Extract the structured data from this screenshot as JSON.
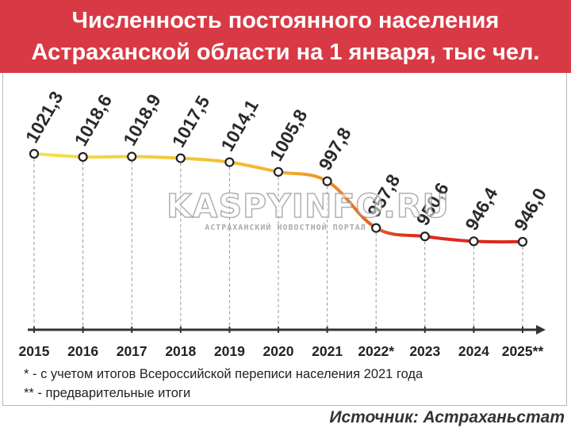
{
  "header": {
    "title_line1": "Численность постоянного населения",
    "title_line2": "Астраханской области на 1 января, тыс чел."
  },
  "chart_data": {
    "type": "line",
    "x": [
      "2015",
      "2016",
      "2017",
      "2018",
      "2019",
      "2020",
      "2021",
      "2022*",
      "2023",
      "2024",
      "2025**"
    ],
    "values": [
      1021.3,
      1018.6,
      1018.9,
      1017.5,
      1014.1,
      1005.8,
      997.8,
      957.8,
      950.6,
      946.4,
      946.0
    ],
    "data_labels": [
      "1021,3",
      "1018,6",
      "1018,9",
      "1017,5",
      "1014,1",
      "1005,8",
      "997,8",
      "957,8",
      "950,6",
      "946,4",
      "946,0"
    ],
    "title": "Численность постоянного населения Астраханской области на 1 января, тыс чел.",
    "xlabel": "",
    "ylabel": "",
    "ylim": [
      940,
      1025
    ],
    "grid": false,
    "line_colors": [
      "#f4e24a",
      "#f2b52c",
      "#ea7a24",
      "#dc2a1e"
    ]
  },
  "footnotes": [
    "*  - с учетом итогов Всероссийской переписи населения 2021 года",
    "** - предварительные итоги"
  ],
  "source": "Источник: Астраханьстат",
  "watermark": {
    "main": "KASPYINFO.RU",
    "sub": "АСТРАХАНСКИЙ НОВОСТНОЙ ПОРТАЛ"
  }
}
